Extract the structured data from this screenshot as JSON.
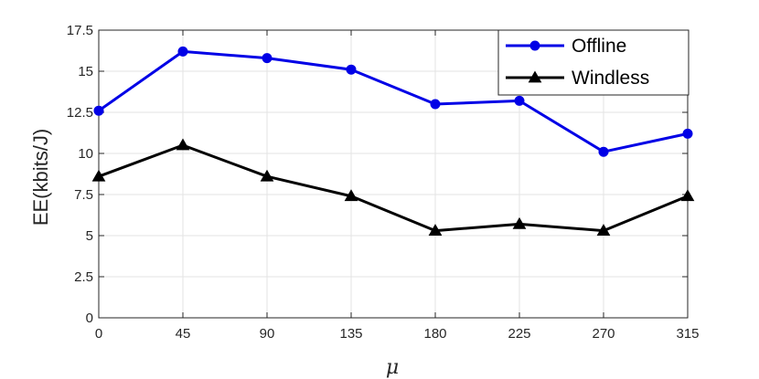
{
  "chart_data": {
    "type": "line",
    "xlabel": "μ",
    "ylabel": "EE(kbits/J)",
    "x": [
      0,
      45,
      90,
      135,
      180,
      225,
      270,
      315
    ],
    "x_tick_labels": [
      "0",
      "45",
      "90",
      "135",
      "180",
      "225",
      "270",
      "315"
    ],
    "xlim": [
      0,
      315
    ],
    "ylim": [
      0,
      17.5
    ],
    "y_ticks": [
      0,
      2.5,
      5,
      7.5,
      10,
      12.5,
      15,
      17.5
    ],
    "y_tick_labels": [
      "0",
      "2.5",
      "5",
      "7.5",
      "10",
      "12.5",
      "15",
      "17.5"
    ],
    "grid": true,
    "legend_position": "top-right",
    "series": [
      {
        "name": "Offline",
        "color": "#0000e6",
        "marker": "circle",
        "values": [
          12.6,
          16.2,
          15.8,
          15.1,
          13.0,
          13.2,
          10.1,
          11.2
        ]
      },
      {
        "name": "Windless",
        "color": "#000000",
        "marker": "triangle",
        "values": [
          8.6,
          10.5,
          8.6,
          7.4,
          5.3,
          5.7,
          5.3,
          7.4
        ]
      }
    ]
  }
}
